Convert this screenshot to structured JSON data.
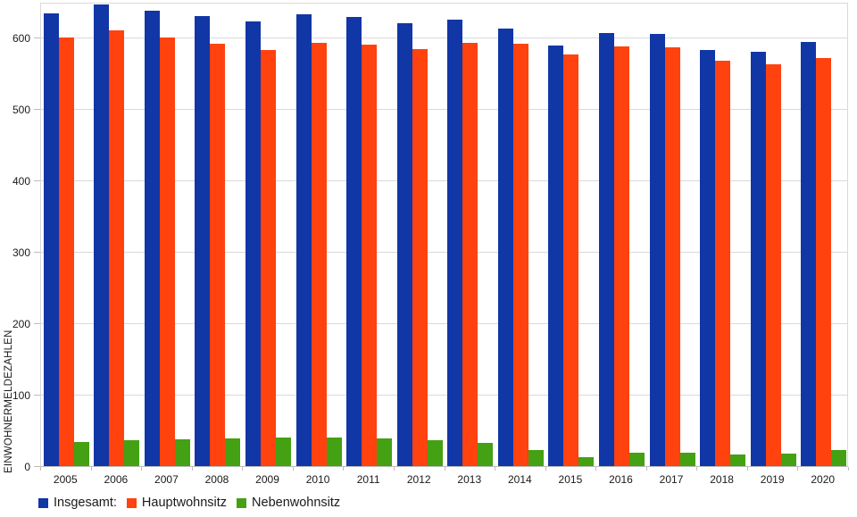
{
  "chart_data": {
    "type": "bar",
    "title": "",
    "xlabel": "",
    "ylabel": "EINWOHNERMELDEZAHLEN",
    "ylim": [
      0,
      650
    ],
    "yticks": [
      0,
      100,
      200,
      300,
      400,
      500,
      600
    ],
    "grid": true,
    "legend_position": "bottom-left",
    "categories": [
      "2005",
      "2006",
      "2007",
      "2008",
      "2009",
      "2010",
      "2011",
      "2012",
      "2013",
      "2014",
      "2015",
      "2016",
      "2017",
      "2018",
      "2019",
      "2020"
    ],
    "series": [
      {
        "key": "insgesamt",
        "name": "Insgesamt:",
        "color": "#1136a6",
        "values": [
          634,
          646,
          638,
          630,
          622,
          633,
          629,
          620,
          625,
          613,
          589,
          606,
          605,
          583,
          580,
          594
        ]
      },
      {
        "key": "hauptwohnsitz",
        "name": "Hauptwohnsitz",
        "color": "#ff420e",
        "values": [
          600,
          610,
          600,
          591,
          582,
          593,
          590,
          584,
          592,
          591,
          576,
          587,
          586,
          567,
          562,
          571
        ]
      },
      {
        "key": "nebenwohnsitz",
        "name": "Nebenwohnsitz",
        "color": "#43a113",
        "values": [
          34,
          36,
          38,
          39,
          40,
          40,
          39,
          36,
          33,
          22,
          13,
          19,
          19,
          16,
          18,
          23
        ]
      }
    ],
    "colors": {
      "gridline": "#d9d9d9",
      "axis": "#bdbdbd",
      "text": "#1a1a1a",
      "background": "#ffffff"
    }
  }
}
